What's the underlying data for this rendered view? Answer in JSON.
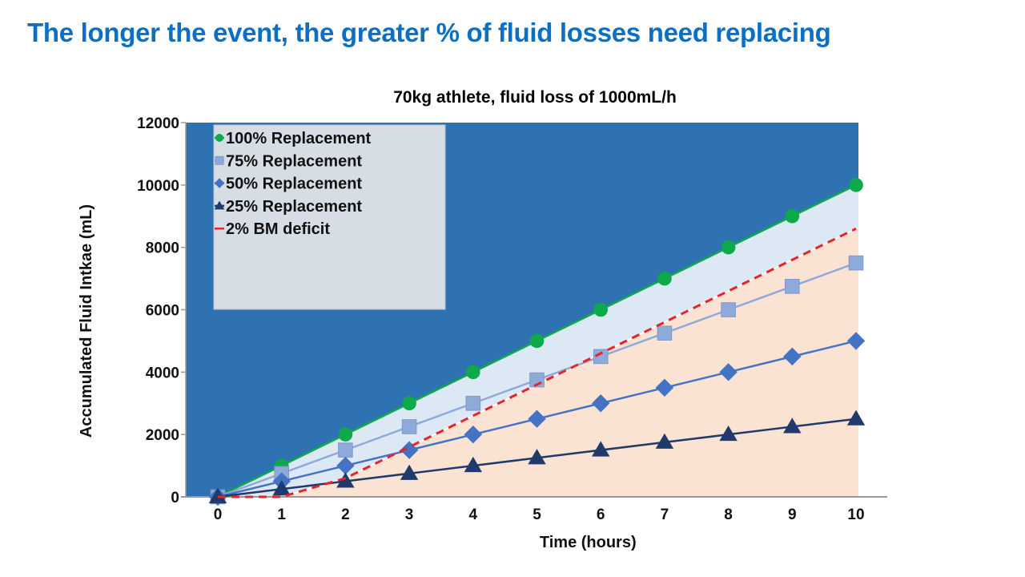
{
  "slide": {
    "title": "The longer the event, the greater % of fluid losses need replacing"
  },
  "colors": {
    "title_blue": "#0b6fc6",
    "upper_region": "#2e72b2",
    "middle_region": "#dce8f4",
    "lower_region": "#fbe3d4",
    "legend_bg": "#d6dde4"
  },
  "chart_data": {
    "type": "line",
    "title": "70kg athlete, fluid loss of 1000mL/h",
    "xlabel": "Time (hours)",
    "ylabel": "Accumulated Fluid Intkae (mL)",
    "x": [
      0,
      1,
      2,
      3,
      4,
      5,
      6,
      7,
      8,
      9,
      10
    ],
    "x_tick_labels": [
      "0",
      "1",
      "2",
      "3",
      "4",
      "5",
      "6",
      "7",
      "8",
      "9",
      "10"
    ],
    "xlim": [
      0,
      10
    ],
    "ylim": [
      0,
      12000
    ],
    "y_ticks": [
      0,
      2000,
      4000,
      6000,
      8000,
      10000,
      12000
    ],
    "y_tick_labels": [
      "0",
      "2000",
      "4000",
      "6000",
      "8000",
      "10000",
      "12000"
    ],
    "grid": false,
    "legend_position": "top-left",
    "series": [
      {
        "name": "100% Replacement",
        "marker": "circle",
        "color": "#0ea94b",
        "values": [
          0,
          1000,
          2000,
          3000,
          4000,
          5000,
          6000,
          7000,
          8000,
          9000,
          10000
        ]
      },
      {
        "name": "75% Replacement",
        "marker": "square",
        "color": "#8eaadb",
        "values": [
          0,
          750,
          1500,
          2250,
          3000,
          3750,
          4500,
          5250,
          6000,
          6750,
          7500
        ]
      },
      {
        "name": "50% Replacement",
        "marker": "diamond",
        "color": "#4472c4",
        "values": [
          0,
          500,
          1000,
          1500,
          2000,
          2500,
          3000,
          3500,
          4000,
          4500,
          5000
        ]
      },
      {
        "name": "25% Replacement",
        "marker": "triangle",
        "color": "#1f3a6b",
        "values": [
          0,
          250,
          500,
          750,
          1000,
          1250,
          1500,
          1750,
          2000,
          2250,
          2500
        ]
      },
      {
        "name": "2% BM deficit",
        "marker": "none",
        "line_style": "dashed",
        "color": "#e8232a",
        "values": [
          0,
          0,
          600,
          1600,
          2600,
          3600,
          4600,
          5600,
          6600,
          7600,
          8600
        ]
      }
    ],
    "shaded_regions": [
      {
        "name": "above 100% replacement",
        "color": "#2e72b2"
      },
      {
        "name": "between 100% replacement and 2% BM deficit",
        "color": "#dce8f4"
      },
      {
        "name": "below 2% BM deficit",
        "color": "#fbe3d4"
      }
    ]
  }
}
